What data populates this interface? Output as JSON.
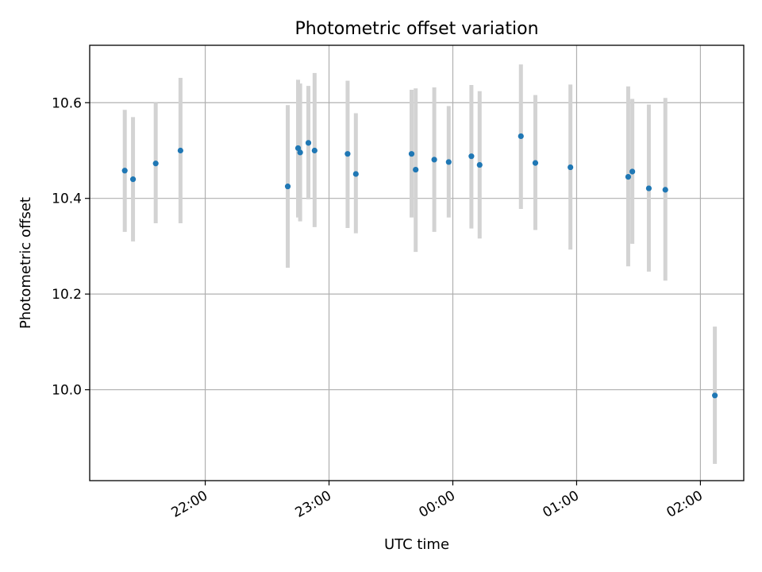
{
  "chart_data": {
    "type": "scatter",
    "title": "Photometric offset variation",
    "xlabel": "UTC time",
    "ylabel": "Photometric offset",
    "x_axis_type": "time",
    "x_tick_labels": [
      "22:00",
      "23:00",
      "00:00",
      "01:00",
      "02:00"
    ],
    "x_tick_times": [
      "22:00",
      "23:00",
      "00:00",
      "01:00",
      "02:00"
    ],
    "xlim": [
      "21:04",
      "02:21"
    ],
    "ylim": [
      9.81,
      10.72
    ],
    "y_ticks": [
      10.0,
      10.2,
      10.4,
      10.6
    ],
    "y_tick_labels": [
      "10.0",
      "10.2",
      "10.4",
      "10.6"
    ],
    "grid": true,
    "marker_color": "#1f77b4",
    "errorbar_color": "#d3d3d3",
    "points": [
      {
        "time": "21:21",
        "y": 10.458,
        "low": 10.33,
        "high": 10.585
      },
      {
        "time": "21:25",
        "y": 10.44,
        "low": 10.31,
        "high": 10.57
      },
      {
        "time": "21:36",
        "y": 10.473,
        "low": 10.348,
        "high": 10.6
      },
      {
        "time": "21:48",
        "y": 10.5,
        "low": 10.348,
        "high": 10.652
      },
      {
        "time": "22:40",
        "y": 10.425,
        "low": 10.255,
        "high": 10.595
      },
      {
        "time": "22:45",
        "y": 10.505,
        "low": 10.36,
        "high": 10.648
      },
      {
        "time": "22:46",
        "y": 10.496,
        "low": 10.352,
        "high": 10.64
      },
      {
        "time": "22:50",
        "y": 10.516,
        "low": 10.398,
        "high": 10.635
      },
      {
        "time": "22:53",
        "y": 10.5,
        "low": 10.34,
        "high": 10.662
      },
      {
        "time": "23:09",
        "y": 10.493,
        "low": 10.338,
        "high": 10.646
      },
      {
        "time": "23:13",
        "y": 10.451,
        "low": 10.327,
        "high": 10.578
      },
      {
        "time": "23:40",
        "y": 10.493,
        "low": 10.36,
        "high": 10.627
      },
      {
        "time": "23:42",
        "y": 10.46,
        "low": 10.288,
        "high": 10.63
      },
      {
        "time": "23:51",
        "y": 10.481,
        "low": 10.33,
        "high": 10.632
      },
      {
        "time": "23:58",
        "y": 10.476,
        "low": 10.36,
        "high": 10.593
      },
      {
        "time": "00:09",
        "y": 10.488,
        "low": 10.337,
        "high": 10.637
      },
      {
        "time": "00:13",
        "y": 10.47,
        "low": 10.316,
        "high": 10.624
      },
      {
        "time": "00:33",
        "y": 10.53,
        "low": 10.378,
        "high": 10.68
      },
      {
        "time": "00:40",
        "y": 10.474,
        "low": 10.334,
        "high": 10.616
      },
      {
        "time": "00:57",
        "y": 10.465,
        "low": 10.293,
        "high": 10.638
      },
      {
        "time": "01:25",
        "y": 10.445,
        "low": 10.258,
        "high": 10.634
      },
      {
        "time": "01:27",
        "y": 10.456,
        "low": 10.305,
        "high": 10.608
      },
      {
        "time": "01:35",
        "y": 10.421,
        "low": 10.247,
        "high": 10.596
      },
      {
        "time": "01:43",
        "y": 10.418,
        "low": 10.228,
        "high": 10.61
      },
      {
        "time": "02:07",
        "y": 9.988,
        "low": 9.845,
        "high": 10.132
      }
    ]
  }
}
